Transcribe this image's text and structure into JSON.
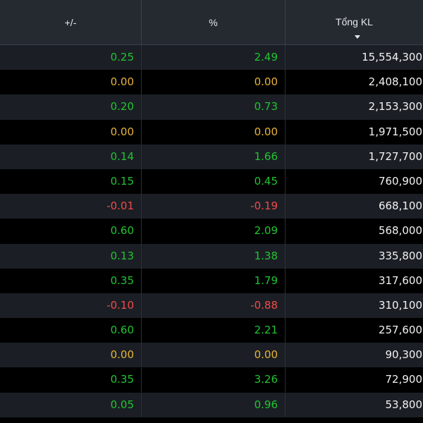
{
  "colors": {
    "up": "#21c431",
    "reference": "#e8b339",
    "down": "#ef4b4b",
    "volume": "#f2f2f2",
    "header_bg": "#252a31",
    "row_alt_bg": "#1b1f25",
    "row_bg": "#000000"
  },
  "header": {
    "change_label": "+/-",
    "percent_label": "%",
    "volume_label": "Tổng KL",
    "sort_icon": "caret-down-icon"
  },
  "rows": [
    {
      "change": "0.25",
      "percent": "2.49",
      "volume": "15,554,300",
      "status": "up"
    },
    {
      "change": "0.00",
      "percent": "0.00",
      "volume": "2,408,100",
      "status": "ref"
    },
    {
      "change": "0.20",
      "percent": "0.73",
      "volume": "2,153,300",
      "status": "up"
    },
    {
      "change": "0.00",
      "percent": "0.00",
      "volume": "1,971,500",
      "status": "ref"
    },
    {
      "change": "0.14",
      "percent": "1.66",
      "volume": "1,727,700",
      "status": "up"
    },
    {
      "change": "0.15",
      "percent": "0.45",
      "volume": "760,900",
      "status": "up"
    },
    {
      "change": "-0.01",
      "percent": "-0.19",
      "volume": "668,100",
      "status": "down"
    },
    {
      "change": "0.60",
      "percent": "2.09",
      "volume": "568,000",
      "status": "up"
    },
    {
      "change": "0.13",
      "percent": "1.38",
      "volume": "335,800",
      "status": "up"
    },
    {
      "change": "0.35",
      "percent": "1.79",
      "volume": "317,600",
      "status": "up"
    },
    {
      "change": "-0.10",
      "percent": "-0.88",
      "volume": "310,100",
      "status": "down"
    },
    {
      "change": "0.60",
      "percent": "2.21",
      "volume": "257,600",
      "status": "up"
    },
    {
      "change": "0.00",
      "percent": "0.00",
      "volume": "90,300",
      "status": "ref"
    },
    {
      "change": "0.35",
      "percent": "3.26",
      "volume": "72,900",
      "status": "up"
    },
    {
      "change": "0.05",
      "percent": "0.96",
      "volume": "53,800",
      "status": "up"
    }
  ]
}
